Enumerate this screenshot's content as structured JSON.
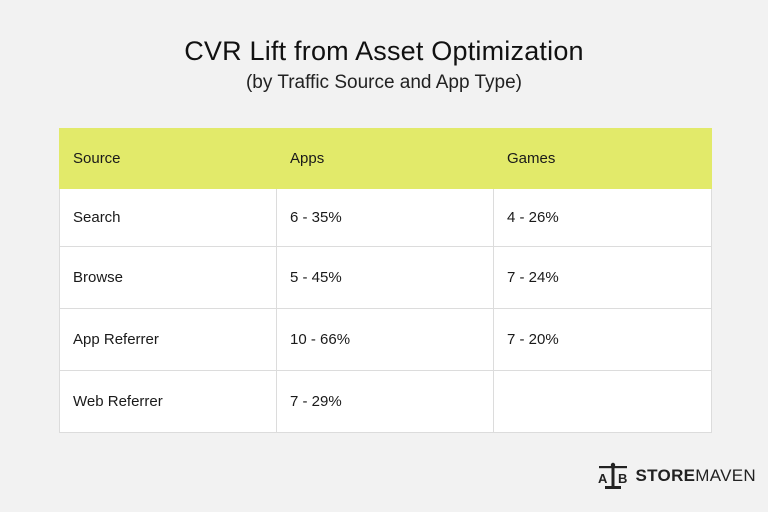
{
  "chart_data": {
    "type": "table",
    "title": "CVR Lift from Asset Optimization",
    "subtitle": "(by Traffic Source and App Type)",
    "columns": [
      "Source",
      "Apps",
      "Games"
    ],
    "rows": [
      [
        "Search",
        "6 - 35%",
        "4 - 26%"
      ],
      [
        "Browse",
        "5 - 45%",
        "7 - 24%"
      ],
      [
        "App Referrer",
        "10 - 66%",
        "7 - 20%"
      ],
      [
        "Web Referrer",
        "7 - 29%",
        ""
      ]
    ],
    "header_color": "#e2ea6a"
  },
  "brand": {
    "logo_icon": "ab-scale-icon",
    "name_bold": "STORE",
    "name_regular": "MAVEN"
  }
}
